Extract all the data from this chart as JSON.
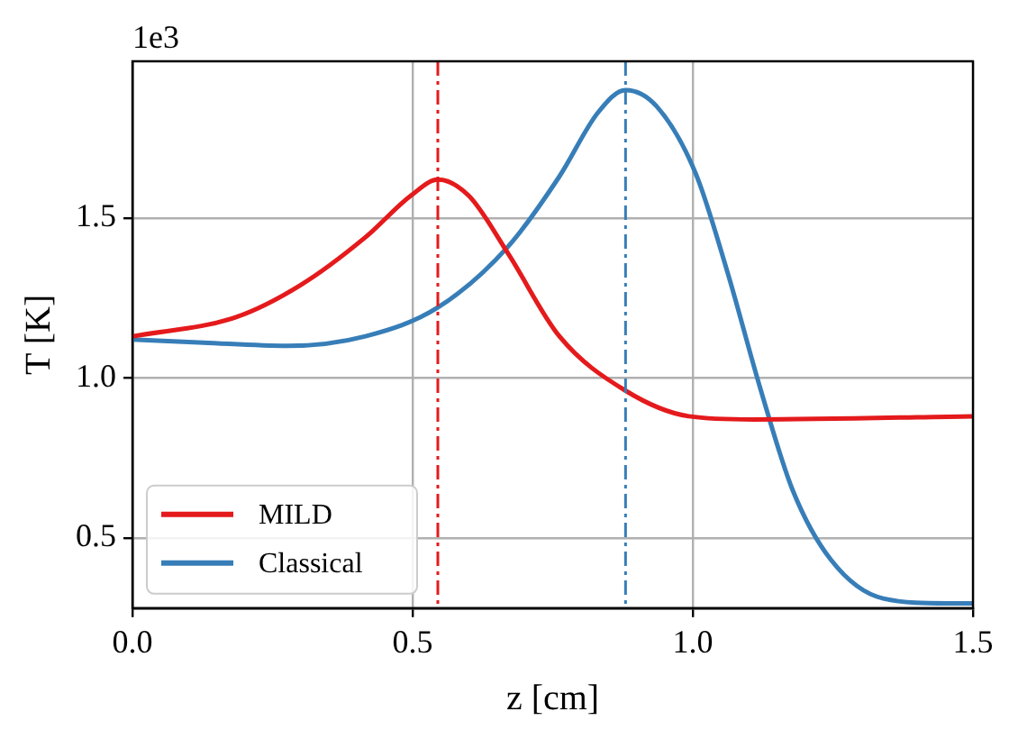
{
  "chart_data": {
    "type": "line",
    "xlabel": "z [cm]",
    "ylabel": "T [K]",
    "annotations": [
      "1e3"
    ],
    "xlim": [
      0,
      1.5
    ],
    "ylim": [
      0.28,
      1.99
    ],
    "xticks": [
      {
        "value": 0,
        "label": "0.0"
      },
      0.5,
      {
        "value": 1,
        "label": "1.0"
      },
      1.5
    ],
    "yticks": [
      0.5,
      {
        "value": 1,
        "label": "1.0"
      },
      1.5
    ],
    "grid": true,
    "legend": "bottom left",
    "line_style": "solid",
    "marker": "none",
    "series": [
      {
        "name": "MILD",
        "color": "#e41a1c",
        "x": [
          0,
          0.185,
          0.3,
          0.416,
          0.497,
          0.545,
          0.6,
          0.67,
          0.762,
          0.88,
          0.993,
          1.109,
          1.5
        ],
        "values": [
          1.13,
          1.19,
          1.29,
          1.44,
          1.57,
          1.62,
          1.57,
          1.39,
          1.13,
          0.96,
          0.88,
          0.87,
          0.88
        ]
      },
      {
        "name": "Classical",
        "color": "#377eb8",
        "x": [
          0,
          0.127,
          0.277,
          0.416,
          0.545,
          0.67,
          0.762,
          0.831,
          0.88,
          0.935,
          1.005,
          1.062,
          1.12,
          1.178,
          1.247,
          1.34,
          1.455,
          1.5
        ],
        "values": [
          1.12,
          1.11,
          1.1,
          1.13,
          1.22,
          1.41,
          1.63,
          1.83,
          1.9,
          1.85,
          1.64,
          1.33,
          0.97,
          0.65,
          0.43,
          0.31,
          0.295,
          0.295
        ]
      }
    ],
    "ref_lines": [
      {
        "axis": "x",
        "value": 0.545,
        "color": "#e41a1c",
        "line_style": "dashed"
      },
      {
        "axis": "x",
        "value": 0.88,
        "color": "#377eb8",
        "line_style": "dashed"
      }
    ]
  }
}
